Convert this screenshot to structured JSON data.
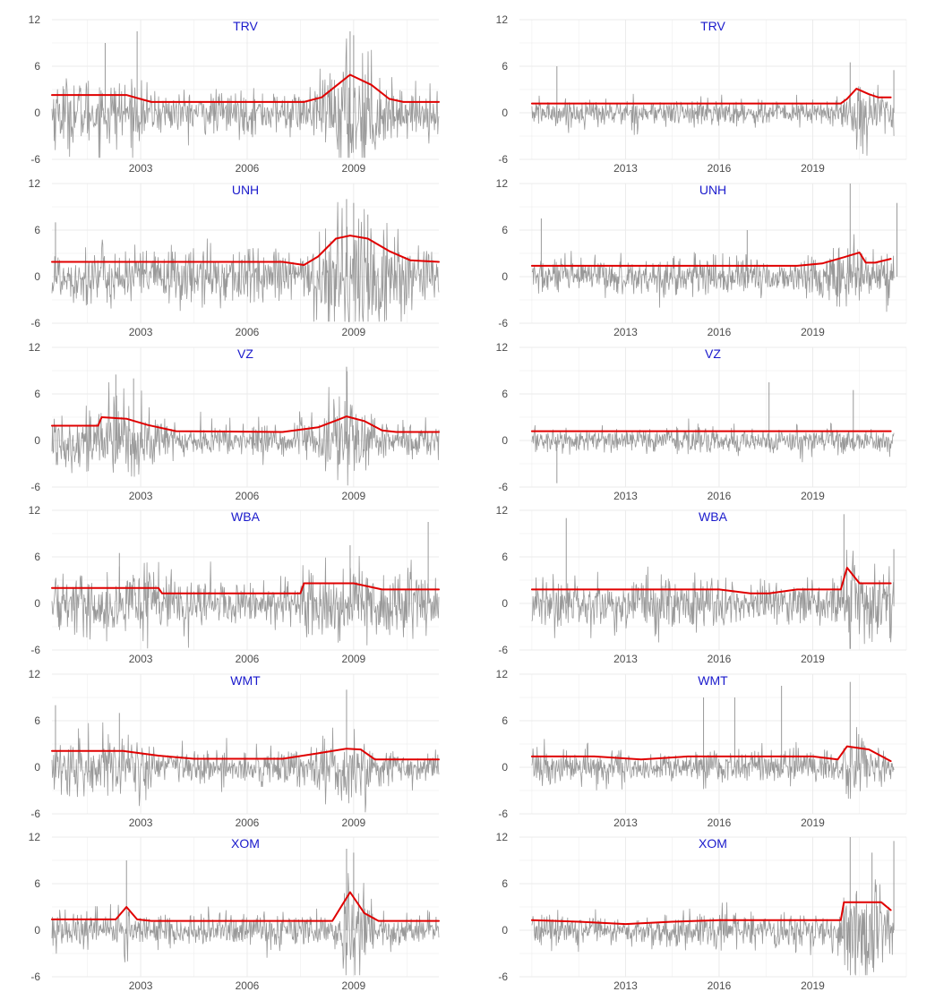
{
  "colors": {
    "returns": "#999999",
    "volatility": "#e00000",
    "title": "#1a1acc",
    "grid": "#ebebeb",
    "tick_text": "#4d4d4d"
  },
  "chart_data": [
    {
      "type": "line",
      "title": "TRV",
      "period": "2000-2011",
      "xticks": [
        "2003",
        "2006",
        "2009"
      ],
      "xlim": [
        2000.5,
        2011.4
      ],
      "ylim": [
        -6,
        12
      ],
      "yticks": [
        "-6",
        "0",
        "6",
        "12"
      ],
      "series": [
        {
          "role": "returns",
          "amp": 1.5,
          "spikes": [
            [
              2002.0,
              9
            ],
            [
              2002.9,
              10.5
            ],
            [
              2008.9,
              10.5
            ],
            [
              2009.0,
              10
            ]
          ]
        },
        {
          "role": "volatility",
          "points": [
            [
              2000.5,
              2.3
            ],
            [
              2002.6,
              2.3
            ],
            [
              2002.9,
              1.9
            ],
            [
              2003.3,
              1.4
            ],
            [
              2007.6,
              1.4
            ],
            [
              2008.1,
              2.0
            ],
            [
              2008.9,
              4.9
            ],
            [
              2009.5,
              3.6
            ],
            [
              2010.0,
              1.8
            ],
            [
              2010.4,
              1.4
            ],
            [
              2011.4,
              1.4
            ]
          ]
        }
      ]
    },
    {
      "type": "line",
      "title": "TRV",
      "period": "2010-2021",
      "xticks": [
        "2013",
        "2016",
        "2019"
      ],
      "xlim": [
        2009.6,
        2022.0
      ],
      "ylim": [
        -6,
        12
      ],
      "yticks": [
        "-6",
        "0",
        "6",
        "12"
      ],
      "series": [
        {
          "role": "returns",
          "amp": 1.1,
          "spikes": [
            [
              2010.8,
              6
            ],
            [
              2020.2,
              6.5
            ],
            [
              2021.6,
              5.5
            ]
          ]
        },
        {
          "role": "volatility",
          "points": [
            [
              2010.0,
              1.2
            ],
            [
              2019.9,
              1.2
            ],
            [
              2020.1,
              1.8
            ],
            [
              2020.4,
              3.1
            ],
            [
              2020.8,
              2.4
            ],
            [
              2021.1,
              2.0
            ],
            [
              2021.5,
              2.0
            ]
          ]
        }
      ]
    },
    {
      "type": "line",
      "title": "UNH",
      "period": "2000-2011",
      "xticks": [
        "2003",
        "2006",
        "2009"
      ],
      "xlim": [
        2000.5,
        2011.4
      ],
      "ylim": [
        -6,
        12
      ],
      "yticks": [
        "-6",
        "0",
        "6",
        "12"
      ],
      "series": [
        {
          "role": "returns",
          "amp": 1.5,
          "spikes": [
            [
              2000.6,
              7
            ],
            [
              2008.8,
              10
            ],
            [
              2009.0,
              9.5
            ],
            [
              2009.4,
              8
            ]
          ]
        },
        {
          "role": "volatility",
          "points": [
            [
              2000.5,
              1.9
            ],
            [
              2007.0,
              1.9
            ],
            [
              2007.6,
              1.5
            ],
            [
              2008.0,
              2.6
            ],
            [
              2008.5,
              4.9
            ],
            [
              2008.9,
              5.3
            ],
            [
              2009.4,
              4.9
            ],
            [
              2010.0,
              3.3
            ],
            [
              2010.6,
              2.1
            ],
            [
              2011.4,
              1.9
            ]
          ]
        }
      ]
    },
    {
      "type": "line",
      "title": "UNH",
      "period": "2010-2021",
      "xticks": [
        "2013",
        "2016",
        "2019"
      ],
      "xlim": [
        2009.6,
        2022.0
      ],
      "ylim": [
        -6,
        12
      ],
      "yticks": [
        "-6",
        "0",
        "6",
        "12"
      ],
      "series": [
        {
          "role": "returns",
          "amp": 1.3,
          "spikes": [
            [
              2010.3,
              7.5
            ],
            [
              2016.9,
              6
            ],
            [
              2020.2,
              12
            ],
            [
              2021.7,
              9.5
            ]
          ]
        },
        {
          "role": "volatility",
          "points": [
            [
              2010.0,
              1.4
            ],
            [
              2018.5,
              1.4
            ],
            [
              2019.3,
              1.7
            ],
            [
              2020.0,
              2.5
            ],
            [
              2020.5,
              3.1
            ],
            [
              2020.7,
              1.8
            ],
            [
              2021.0,
              1.8
            ],
            [
              2021.5,
              2.3
            ]
          ]
        }
      ]
    },
    {
      "type": "line",
      "title": "VZ",
      "period": "2000-2011",
      "xticks": [
        "2003",
        "2006",
        "2009"
      ],
      "xlim": [
        2000.5,
        2011.4
      ],
      "ylim": [
        -6,
        12
      ],
      "yticks": [
        "-6",
        "0",
        "6",
        "12"
      ],
      "series": [
        {
          "role": "returns",
          "amp": 1.5,
          "spikes": [
            [
              2002.3,
              8.5
            ],
            [
              2002.8,
              8
            ],
            [
              2008.8,
              9.5
            ]
          ]
        },
        {
          "role": "volatility",
          "points": [
            [
              2000.5,
              1.9
            ],
            [
              2001.8,
              1.9
            ],
            [
              2001.9,
              3.0
            ],
            [
              2002.6,
              2.8
            ],
            [
              2003.2,
              2.0
            ],
            [
              2004.0,
              1.2
            ],
            [
              2007.0,
              1.1
            ],
            [
              2008.0,
              1.7
            ],
            [
              2008.8,
              3.1
            ],
            [
              2009.3,
              2.5
            ],
            [
              2009.8,
              1.3
            ],
            [
              2010.2,
              1.1
            ],
            [
              2011.4,
              1.1
            ]
          ]
        }
      ]
    },
    {
      "type": "line",
      "title": "VZ",
      "period": "2010-2021",
      "xticks": [
        "2013",
        "2016",
        "2019"
      ],
      "xlim": [
        2009.6,
        2022.0
      ],
      "ylim": [
        -6,
        12
      ],
      "yticks": [
        "-6",
        "0",
        "6",
        "12"
      ],
      "series": [
        {
          "role": "returns",
          "amp": 1.0,
          "spikes": [
            [
              2017.6,
              7.5
            ],
            [
              2020.3,
              6.5
            ],
            [
              2010.8,
              -5.5
            ]
          ]
        },
        {
          "role": "volatility",
          "points": [
            [
              2010.0,
              1.2
            ],
            [
              2021.5,
              1.2
            ]
          ]
        }
      ]
    },
    {
      "type": "line",
      "title": "WBA",
      "period": "2000-2011",
      "xticks": [
        "2003",
        "2006",
        "2009"
      ],
      "xlim": [
        2000.5,
        2011.4
      ],
      "ylim": [
        -6,
        12
      ],
      "yticks": [
        "-6",
        "0",
        "6",
        "12"
      ],
      "series": [
        {
          "role": "returns",
          "amp": 1.6,
          "spikes": [
            [
              2002.4,
              6.5
            ],
            [
              2008.9,
              7.5
            ],
            [
              2011.1,
              10.5
            ]
          ]
        },
        {
          "role": "volatility",
          "points": [
            [
              2000.5,
              2.0
            ],
            [
              2003.5,
              2.0
            ],
            [
              2003.6,
              1.3
            ],
            [
              2007.5,
              1.3
            ],
            [
              2007.6,
              2.6
            ],
            [
              2009.0,
              2.6
            ],
            [
              2009.8,
              1.8
            ],
            [
              2011.4,
              1.8
            ]
          ]
        }
      ]
    },
    {
      "type": "line",
      "title": "WBA",
      "period": "2010-2021",
      "xticks": [
        "2013",
        "2016",
        "2019"
      ],
      "xlim": [
        2009.6,
        2022.0
      ],
      "ylim": [
        -6,
        12
      ],
      "yticks": [
        "-6",
        "0",
        "6",
        "12"
      ],
      "series": [
        {
          "role": "returns",
          "amp": 1.4,
          "spikes": [
            [
              2011.1,
              11
            ],
            [
              2020.0,
              11.5
            ],
            [
              2021.6,
              7
            ]
          ]
        },
        {
          "role": "volatility",
          "points": [
            [
              2010.0,
              1.8
            ],
            [
              2016.0,
              1.8
            ],
            [
              2017.0,
              1.3
            ],
            [
              2017.6,
              1.3
            ],
            [
              2018.5,
              1.8
            ],
            [
              2019.9,
              1.8
            ],
            [
              2020.1,
              4.6
            ],
            [
              2020.5,
              2.6
            ],
            [
              2021.5,
              2.6
            ]
          ]
        }
      ]
    },
    {
      "type": "line",
      "title": "WMT",
      "period": "2000-2011",
      "xticks": [
        "2003",
        "2006",
        "2009"
      ],
      "xlim": [
        2000.5,
        2011.4
      ],
      "ylim": [
        -6,
        12
      ],
      "yticks": [
        "-6",
        "0",
        "6",
        "12"
      ],
      "series": [
        {
          "role": "returns",
          "amp": 1.5,
          "spikes": [
            [
              2000.6,
              8
            ],
            [
              2008.8,
              10
            ],
            [
              2002.4,
              7
            ]
          ]
        },
        {
          "role": "volatility",
          "points": [
            [
              2000.5,
              2.1
            ],
            [
              2002.5,
              2.1
            ],
            [
              2003.5,
              1.5
            ],
            [
              2004.5,
              1.1
            ],
            [
              2007.0,
              1.1
            ],
            [
              2008.0,
              1.8
            ],
            [
              2008.8,
              2.4
            ],
            [
              2009.2,
              2.3
            ],
            [
              2009.6,
              1.0
            ],
            [
              2011.4,
              1.0
            ]
          ]
        }
      ]
    },
    {
      "type": "line",
      "title": "WMT",
      "period": "2010-2021",
      "xticks": [
        "2013",
        "2016",
        "2019"
      ],
      "xlim": [
        2009.6,
        2022.0
      ],
      "ylim": [
        -6,
        12
      ],
      "yticks": [
        "-6",
        "0",
        "6",
        "12"
      ],
      "series": [
        {
          "role": "returns",
          "amp": 1.2,
          "spikes": [
            [
              2015.5,
              9
            ],
            [
              2016.5,
              9
            ],
            [
              2018.0,
              10.5
            ],
            [
              2020.2,
              11
            ]
          ]
        },
        {
          "role": "volatility",
          "points": [
            [
              2010.0,
              1.4
            ],
            [
              2012.0,
              1.4
            ],
            [
              2013.5,
              1.0
            ],
            [
              2015.0,
              1.4
            ],
            [
              2019.0,
              1.4
            ],
            [
              2019.8,
              1.0
            ],
            [
              2020.1,
              2.7
            ],
            [
              2020.8,
              2.3
            ],
            [
              2021.5,
              0.8
            ]
          ]
        }
      ]
    },
    {
      "type": "line",
      "title": "XOM",
      "period": "2000-2011",
      "xticks": [
        "2003",
        "2006",
        "2009"
      ],
      "xlim": [
        2000.5,
        2011.4
      ],
      "ylim": [
        -6,
        12
      ],
      "yticks": [
        "-6",
        "0",
        "6",
        "12"
      ],
      "series": [
        {
          "role": "returns",
          "amp": 1.3,
          "spikes": [
            [
              2002.6,
              9
            ],
            [
              2008.8,
              10.5
            ],
            [
              2009.0,
              10
            ]
          ]
        },
        {
          "role": "volatility",
          "points": [
            [
              2000.5,
              1.4
            ],
            [
              2002.3,
              1.4
            ],
            [
              2002.6,
              3.0
            ],
            [
              2002.9,
              1.4
            ],
            [
              2003.3,
              1.2
            ],
            [
              2008.4,
              1.2
            ],
            [
              2008.9,
              4.9
            ],
            [
              2009.3,
              2.2
            ],
            [
              2009.7,
              1.2
            ],
            [
              2011.4,
              1.2
            ]
          ]
        }
      ]
    },
    {
      "type": "line",
      "title": "XOM",
      "period": "2010-2021",
      "xticks": [
        "2013",
        "2016",
        "2019"
      ],
      "xlim": [
        2009.6,
        2022.0
      ],
      "ylim": [
        -6,
        12
      ],
      "yticks": [
        "-6",
        "0",
        "6",
        "12"
      ],
      "series": [
        {
          "role": "returns",
          "amp": 1.5,
          "spikes": [
            [
              2020.2,
              12
            ],
            [
              2020.9,
              10
            ],
            [
              2021.6,
              11.5
            ]
          ]
        },
        {
          "role": "volatility",
          "points": [
            [
              2010.0,
              1.3
            ],
            [
              2011.5,
              1.1
            ],
            [
              2013.0,
              0.8
            ],
            [
              2014.5,
              1.1
            ],
            [
              2016.0,
              1.3
            ],
            [
              2019.9,
              1.3
            ],
            [
              2020.0,
              3.6
            ],
            [
              2021.2,
              3.6
            ],
            [
              2021.5,
              2.6
            ]
          ]
        }
      ]
    }
  ]
}
